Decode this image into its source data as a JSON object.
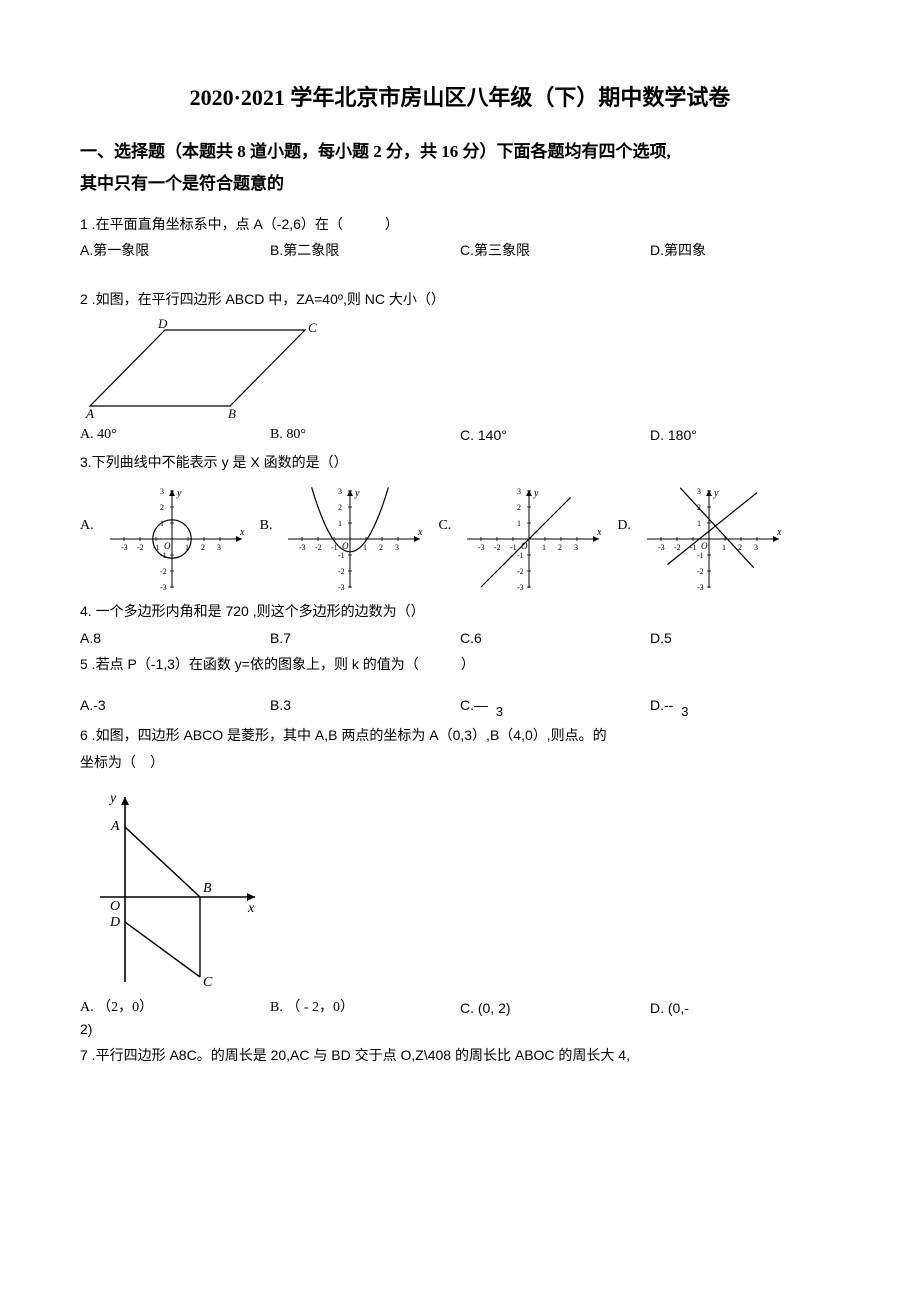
{
  "title": "2020·2021 学年北京市房山区八年级（下）期中数学试卷",
  "section1_line1": "一、选择题（本题共 8 道小题，每小题 2 分，共 16 分）下面各题均有四个选项,",
  "section1_line2": "其中只有一个是符合题意的",
  "q1": {
    "stem": "1 .在平面直角坐标系中，点 A（-2,6）在（　　　）",
    "A": "A.第一象限",
    "B": "B.第二象限",
    "C": "C.第三象限",
    "D": "D.第四象"
  },
  "q2": {
    "stem": "2  .如图，在平行四边形 ABCD 中，ZA=40º,则 NC 大小（）",
    "A": "A.  40°",
    "B": "B.  80°",
    "C": "C. 140°",
    "D": "D. 180°",
    "labels": {
      "A": "A",
      "B": "B",
      "C": "C",
      "D": "D"
    }
  },
  "q3": {
    "stem": "3.下列曲线中不能表示 y 是 X 函数的是（）",
    "A": "A.",
    "B": "B.",
    "C": "C.",
    "D": "D.",
    "ticks": {
      "xneg": [
        "-3",
        "-2",
        "-1"
      ],
      "xpos": [
        "1",
        "2",
        "3"
      ],
      "yneg": [
        "-1",
        "-2",
        "-3"
      ],
      "ypos": [
        "1",
        "2",
        "3"
      ]
    },
    "axisO": "O",
    "axisX": "x",
    "axisY": "y"
  },
  "q4": {
    "stem": "4. 一个多边形内角和是 720 ,则这个多边形的边数为（）",
    "A": "A.8",
    "B": "B.7",
    "C": "C.6",
    "D": "D.5"
  },
  "q5": {
    "stem": "5  .若点 P（-1,3）在函数 y=依的图象上，则 k 的值为（　　　）",
    "A": "A.-3",
    "B": "B.3",
    "C": "C.—",
    "Csub": "3",
    "D": "D.--",
    "Dsub": "3"
  },
  "q6": {
    "stem1": "6  .如图，四边形 ABCO 是菱形，其中 A,B 两点的坐标为 A（0,3）,B（4,0）,则点。的",
    "stem2": "坐标为（　）",
    "A": "A. （2，0）",
    "B": "B. （ - 2，0）",
    "C": "C. (0, 2)",
    "D": "D. (0,-",
    "Dline2": "2)",
    "labels": {
      "A": "A",
      "B": "B",
      "C": "C",
      "D": "D",
      "O": "O",
      "x": "x",
      "y": "y"
    }
  },
  "q7": {
    "stem": "7  .平行四边形 A8C。的周长是 20,AC 与 BD 交于点 O,Z\\408 的周长比 ABOC 的周长大 4,"
  },
  "colors": {
    "ink": "#000000",
    "tick": "#585858"
  }
}
